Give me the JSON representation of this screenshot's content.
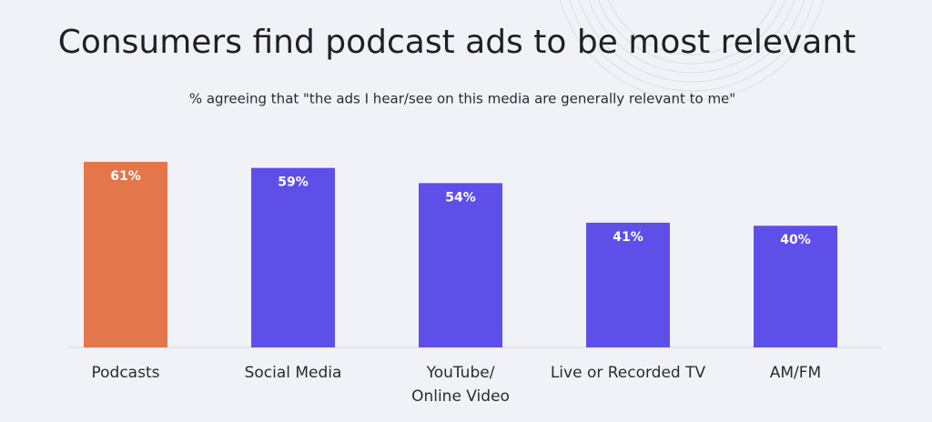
{
  "chart_data": {
    "type": "bar",
    "title": "Consumers find podcast ads to be most relevant",
    "subtitle": "% agreeing that \"the ads I hear/see on this media are generally relevant to me\"",
    "categories": [
      "Podcasts",
      "Social Media",
      "YouTube/ Online Video",
      "Live or Recorded TV",
      "AM/FM"
    ],
    "values": [
      61,
      59,
      54,
      41,
      40
    ],
    "value_labels": [
      "61%",
      "59%",
      "54%",
      "41%",
      "40%"
    ],
    "colors": [
      "#e3764a",
      "#5f4fe9",
      "#5f4fe9",
      "#5f4fe9",
      "#5f4fe9"
    ]
  }
}
